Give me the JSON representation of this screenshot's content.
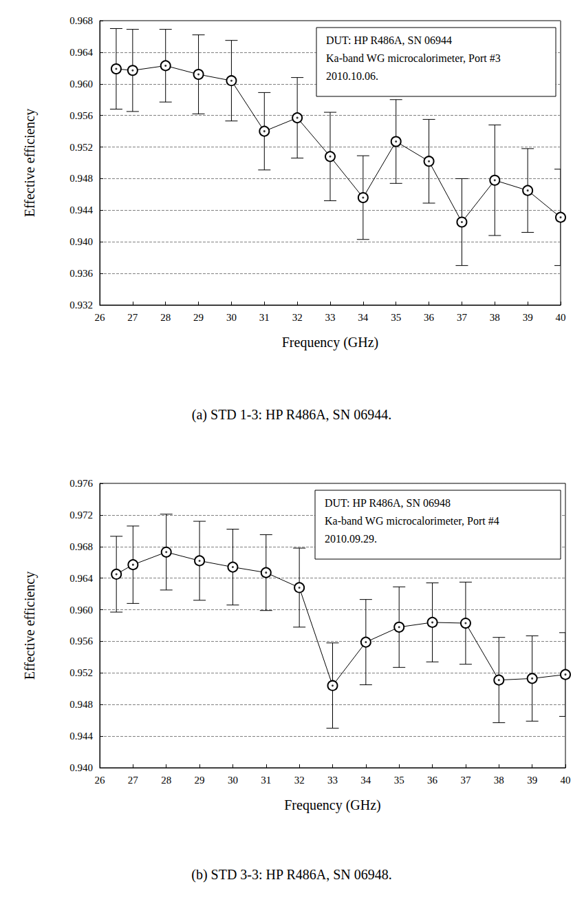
{
  "chart_data": [
    {
      "type": "line",
      "xlabel": "Frequency (GHz)",
      "ylabel": "Effective efficiency",
      "annotation": [
        "DUT: HP R486A, SN 06944",
        "Ka-band WG microcalorimeter, Port #3",
        "2010.10.06."
      ],
      "caption": "(a) STD 1-3: HP R486A, SN 06944.",
      "x": [
        26.5,
        27,
        28,
        29,
        30,
        31,
        32,
        33,
        34,
        35,
        36,
        37,
        38,
        39,
        40
      ],
      "values": [
        0.9619,
        0.9617,
        0.9623,
        0.9612,
        0.9604,
        0.954,
        0.9557,
        0.9508,
        0.9456,
        0.9527,
        0.9502,
        0.9425,
        0.9478,
        0.9465,
        0.9431
      ],
      "errors": [
        0.0051,
        0.0052,
        0.0046,
        0.005,
        0.0051,
        0.0049,
        0.0051,
        0.0056,
        0.0053,
        0.0053,
        0.0053,
        0.0055,
        0.007,
        0.0053,
        0.0061
      ],
      "color": "#000000",
      "marker": "circle_dot",
      "line_style": "solid",
      "grid": true,
      "xlim": [
        26,
        40
      ],
      "xticks": [
        26,
        27,
        28,
        29,
        30,
        31,
        32,
        33,
        34,
        35,
        36,
        37,
        38,
        39,
        40
      ],
      "ylim": [
        0.932,
        0.968
      ],
      "yticks": [
        0.932,
        0.936,
        {
          "value": 0.94,
          "label": "0.940"
        },
        0.944,
        0.948,
        0.952,
        0.956,
        {
          "value": 0.96,
          "label": "0.960"
        },
        0.964,
        0.968
      ]
    },
    {
      "type": "line",
      "xlabel": "Frequency (GHz)",
      "ylabel": "Effective efficiency",
      "annotation": [
        "DUT: HP R486A, SN 06948",
        "Ka-band WG microcalorimeter, Port #4",
        "2010.09.29."
      ],
      "caption": "(b) STD 3-3: HP R486A, SN 06948.",
      "x": [
        26.5,
        27,
        28,
        29,
        30,
        31,
        32,
        33,
        34,
        35,
        36,
        37,
        38,
        39,
        40
      ],
      "values": [
        0.9645,
        0.9657,
        0.9673,
        0.9662,
        0.9654,
        0.9647,
        0.9628,
        0.9504,
        0.9559,
        0.9578,
        0.9584,
        0.9583,
        0.9511,
        0.9513,
        0.9518
      ],
      "errors": [
        0.0048,
        0.0049,
        0.0048,
        0.005,
        0.0048,
        0.0048,
        0.005,
        0.0054,
        0.0054,
        0.0051,
        0.005,
        0.0052,
        0.0054,
        0.0054,
        0.0053
      ],
      "color": "#000000",
      "marker": "circle_dot",
      "line_style": "solid",
      "grid": true,
      "xlim": [
        26,
        40
      ],
      "xticks": [
        26,
        27,
        28,
        29,
        30,
        31,
        32,
        33,
        34,
        35,
        36,
        37,
        38,
        39,
        40
      ],
      "ylim": [
        0.94,
        0.976
      ],
      "yticks": [
        {
          "value": 0.94,
          "label": "0.940"
        },
        0.944,
        0.948,
        0.952,
        0.956,
        {
          "value": 0.96,
          "label": "0.960"
        },
        0.964,
        0.968,
        0.972,
        0.976
      ]
    }
  ]
}
